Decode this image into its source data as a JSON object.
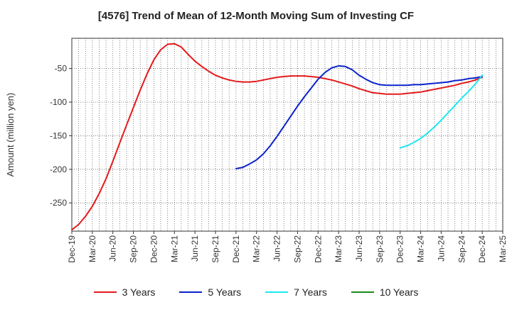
{
  "chart_data": {
    "type": "line",
    "title": "[4576]  Trend of Mean of 12-Month Moving Sum of Investing CF",
    "xlabel": "",
    "ylabel": "Amount (million yen)",
    "ylim": [
      -292,
      -5
    ],
    "yticks": [
      -50,
      -100,
      -150,
      -200,
      -250
    ],
    "xlim": [
      0,
      63
    ],
    "xtick_labels": [
      "Dec-19",
      "Mar-20",
      "Jun-20",
      "Sep-20",
      "Dec-20",
      "Mar-21",
      "Jun-21",
      "Sep-21",
      "Dec-21",
      "Mar-22",
      "Jun-22",
      "Sep-22",
      "Dec-22",
      "Mar-23",
      "Jun-23",
      "Sep-23",
      "Dec-23",
      "Mar-24",
      "Jun-24",
      "Sep-24",
      "Dec-24",
      "Mar-25"
    ],
    "grid": true,
    "legend_position": "bottom",
    "series": [
      {
        "name": "3 Years",
        "color": "#e31a1c",
        "x": [
          0,
          1,
          2,
          3,
          4,
          5,
          6,
          7,
          8,
          9,
          10,
          11,
          12,
          13,
          14,
          15,
          16,
          17,
          18,
          19,
          20,
          21,
          22,
          23,
          24,
          25,
          26,
          27,
          28,
          29,
          30,
          31,
          32,
          33,
          34,
          35,
          36,
          37,
          38,
          39,
          40,
          41,
          42,
          43,
          44,
          45,
          46,
          47,
          48,
          49,
          50,
          51,
          52,
          53,
          54,
          55,
          56,
          57,
          58,
          59,
          60
        ],
        "values": [
          -290,
          -282,
          -270,
          -255,
          -236,
          -214,
          -188,
          -161,
          -134,
          -108,
          -82,
          -58,
          -37,
          -22,
          -14,
          -13,
          -18,
          -29,
          -39,
          -47,
          -54,
          -60,
          -64,
          -67,
          -69,
          -70,
          -70,
          -69,
          -67,
          -65,
          -63,
          -62,
          -61,
          -61,
          -61,
          -62,
          -63,
          -65,
          -67,
          -70,
          -73,
          -76,
          -80,
          -83,
          -86,
          -87,
          -88,
          -88,
          -88,
          -87,
          -86,
          -85,
          -83,
          -81,
          -79,
          -77,
          -75,
          -72,
          -70,
          -67,
          -63
        ]
      },
      {
        "name": "5 Years",
        "color": "#0a22cc",
        "x": [
          24,
          25,
          26,
          27,
          28,
          29,
          30,
          31,
          32,
          33,
          34,
          35,
          36,
          37,
          38,
          39,
          40,
          41,
          42,
          43,
          44,
          45,
          46,
          47,
          48,
          49,
          50,
          51,
          52,
          53,
          54,
          55,
          56,
          57,
          58,
          59,
          60
        ],
        "values": [
          -199,
          -197,
          -192,
          -186,
          -177,
          -165,
          -151,
          -136,
          -121,
          -106,
          -92,
          -79,
          -66,
          -56,
          -49,
          -46,
          -47,
          -52,
          -60,
          -66,
          -71,
          -74,
          -75,
          -75,
          -75,
          -75,
          -74,
          -74,
          -73,
          -72,
          -71,
          -70,
          -68,
          -67,
          -65,
          -64,
          -62
        ]
      },
      {
        "name": "7 Years",
        "color": "#1ee8f0",
        "x": [
          48,
          49,
          50,
          51,
          52,
          53,
          54,
          55,
          56,
          57,
          58,
          59,
          60
        ],
        "values": [
          -168,
          -165,
          -160,
          -154,
          -146,
          -137,
          -127,
          -116,
          -105,
          -94,
          -84,
          -73,
          -60
        ]
      },
      {
        "name": "10 Years",
        "color": "#1a8a1a",
        "x": [],
        "values": []
      }
    ]
  }
}
